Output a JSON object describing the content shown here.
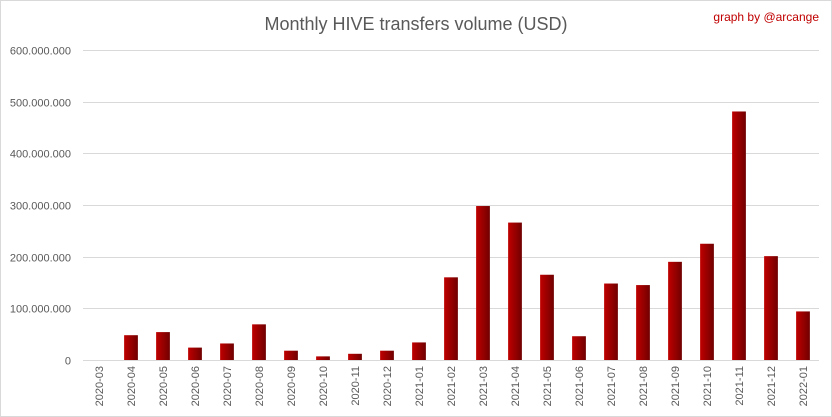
{
  "chart_data": {
    "type": "bar",
    "title": "Monthly HIVE transfers volume (USD)",
    "annotation": "graph by @arcange",
    "xlabel": "",
    "ylabel": "",
    "ylim": [
      0,
      600000000
    ],
    "yticks": [
      0,
      100000000,
      200000000,
      300000000,
      400000000,
      500000000,
      600000000
    ],
    "ytick_labels": [
      "0",
      "100.000.000",
      "200.000.000",
      "300.000.000",
      "400.000.000",
      "500.000.000",
      "600.000.000"
    ],
    "grid": true,
    "legend": "none",
    "categories": [
      "2020-03",
      "2020-04",
      "2020-05",
      "2020-06",
      "2020-07",
      "2020-08",
      "2020-09",
      "2020-10",
      "2020-11",
      "2020-12",
      "2021-01",
      "2021-02",
      "2021-03",
      "2021-04",
      "2021-05",
      "2021-06",
      "2021-07",
      "2021-08",
      "2021-09",
      "2021-10",
      "2021-11",
      "2021-12",
      "2022-01"
    ],
    "values": [
      0,
      48000000,
      54000000,
      24000000,
      32000000,
      69000000,
      18000000,
      7000000,
      12000000,
      18000000,
      34000000,
      160000000,
      298000000,
      266000000,
      165000000,
      46000000,
      148000000,
      145000000,
      190000000,
      225000000,
      481000000,
      201000000,
      94000000
    ]
  },
  "colors": {
    "bar_light": "#c00000",
    "bar_dark": "#700000",
    "grid": "#d9d9d9",
    "text": "#595959",
    "credit": "#c00000"
  }
}
